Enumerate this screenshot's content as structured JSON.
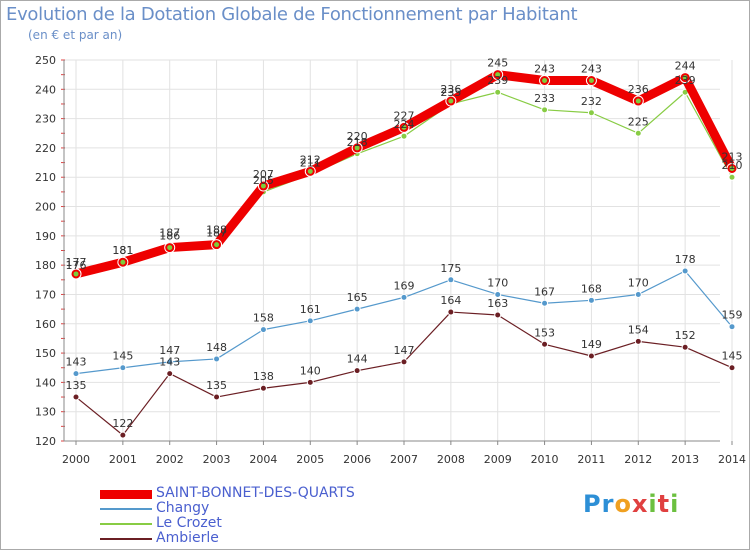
{
  "title": "Evolution de la Dotation Globale de Fonctionnement par Habitant",
  "subtitle": "(en € et par an)",
  "logo_text": "Proxiti",
  "chart_data": {
    "type": "line",
    "title": "Evolution de la Dotation Globale de Fonctionnement par Habitant",
    "subtitle": "(en € et par an)",
    "xlabel": "",
    "ylabel": "",
    "ylim": [
      120,
      250
    ],
    "yticks": [
      120,
      130,
      140,
      150,
      160,
      170,
      180,
      190,
      200,
      210,
      220,
      230,
      240,
      250
    ],
    "categories": [
      "2000",
      "2001",
      "2002",
      "2003",
      "2004",
      "2005",
      "2006",
      "2007",
      "2008",
      "2009",
      "2010",
      "2011",
      "2012",
      "2013",
      "2014"
    ],
    "legend_position": "bottom-left",
    "series": [
      {
        "name": "SAINT-BONNET-DES-QUARTS",
        "color": "#ee0000",
        "values": [
          177,
          181,
          186,
          187,
          207,
          212,
          220,
          227,
          236,
          245,
          243,
          243,
          236,
          244,
          213
        ]
      },
      {
        "name": "Changy",
        "color": "#5599cc",
        "values": [
          143,
          145,
          147,
          148,
          158,
          161,
          165,
          169,
          175,
          170,
          167,
          168,
          170,
          178,
          159
        ]
      },
      {
        "name": "Le Crozet",
        "color": "#88cc44",
        "values": [
          176,
          181,
          187,
          188,
          205,
          211,
          218,
          224,
          235,
          239,
          233,
          232,
          225,
          239,
          210
        ]
      },
      {
        "name": "Ambierle",
        "color": "#6b1f24",
        "values": [
          135,
          122,
          143,
          135,
          138,
          140,
          144,
          147,
          164,
          163,
          153,
          149,
          154,
          152,
          145
        ]
      }
    ]
  }
}
